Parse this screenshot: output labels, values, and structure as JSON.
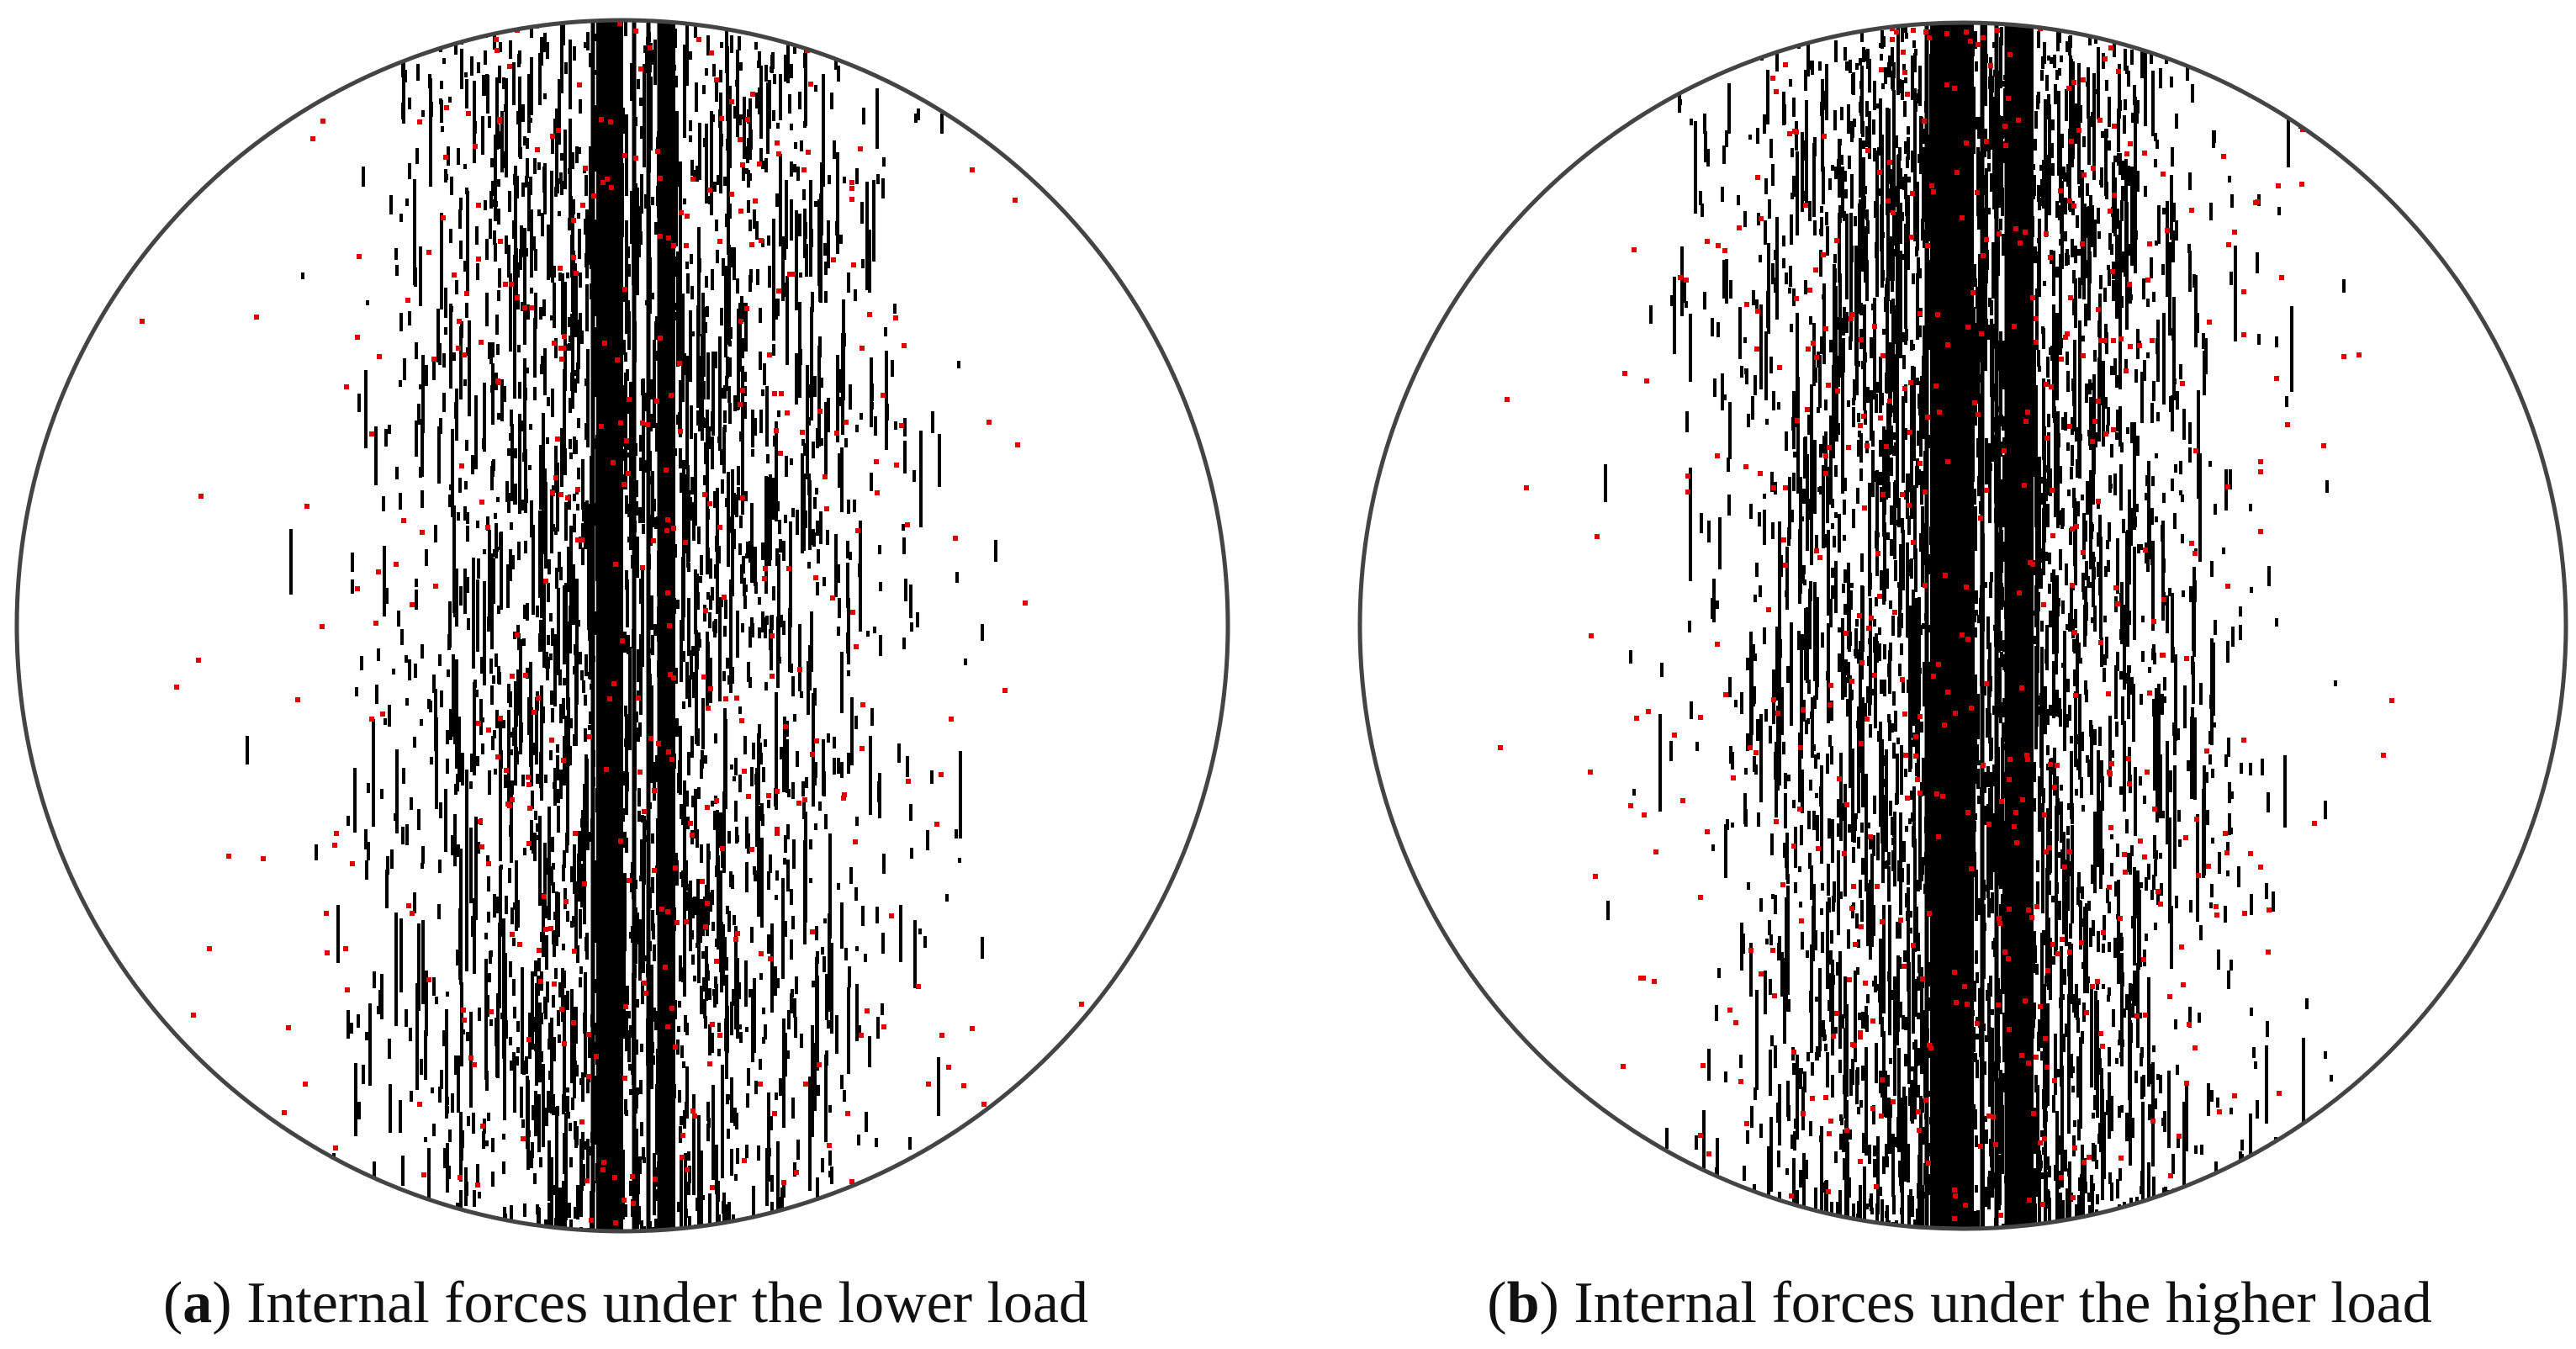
{
  "panels": [
    {
      "caption": [
        "(",
        "a",
        ") Internal forces under the lower load"
      ]
    },
    {
      "caption": [
        "(",
        "b",
        ") Internal forces under the higher load"
      ]
    }
  ]
}
